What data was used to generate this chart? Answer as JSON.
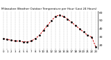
{
  "title": "Milwaukee Weather Outdoor Temperature per Hour (Last 24 Hours)",
  "hours": [
    0,
    1,
    2,
    3,
    4,
    5,
    6,
    7,
    8,
    9,
    10,
    11,
    12,
    13,
    14,
    15,
    16,
    17,
    18,
    19,
    20,
    21,
    22,
    23
  ],
  "temps": [
    28,
    27,
    26,
    25,
    25,
    24,
    24,
    25,
    28,
    32,
    38,
    44,
    50,
    55,
    57,
    55,
    52,
    48,
    44,
    40,
    36,
    32,
    30,
    18
  ],
  "line_color": "#cc0000",
  "marker_color": "#000000",
  "grid_color": "#999999",
  "bg_color": "#ffffff",
  "ylim_min": 15,
  "ylim_max": 62,
  "yticks": [
    20,
    30,
    40,
    50,
    60
  ],
  "ylabel_fontsize": 3.2,
  "xlabel_fontsize": 2.8,
  "title_fontsize": 3.0
}
